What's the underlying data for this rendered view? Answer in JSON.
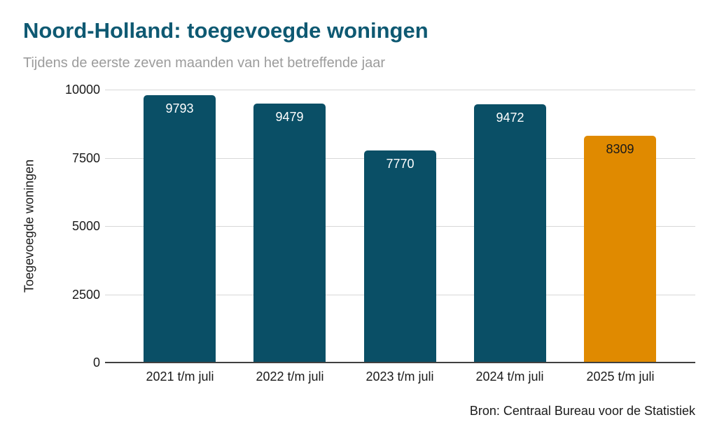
{
  "header": {
    "title": "Noord-Holland: toegevoegde woningen",
    "subtitle": "Tijdens de eerste zeven maanden van het betreffende jaar"
  },
  "footer": {
    "source": "Bron: Centraal Bureau voor de Statistiek"
  },
  "colors": {
    "title": "#0E5972",
    "subtitle": "#9C9C9C",
    "bar_default": "#0A4F66",
    "bar_highlight": "#E08A00",
    "gridline": "#D8D8D8",
    "axis_line": "#404040",
    "value_label_on_dark": "#FFFFFF",
    "value_label_on_highlight": "#1A1A1A",
    "tick_label": "#1A1A1A"
  },
  "chart_data": {
    "type": "bar",
    "title": "Noord-Holland: toegevoegde woningen",
    "subtitle": "Tijdens de eerste zeven maanden van het betreffende jaar",
    "categories": [
      "2021 t/m juli",
      "2022 t/m juli",
      "2023 t/m juli",
      "2024 t/m juli",
      "2025 t/m juli"
    ],
    "values": [
      9793,
      9479,
      7770,
      9472,
      8309
    ],
    "bar_colors": [
      "#0A4F66",
      "#0A4F66",
      "#0A4F66",
      "#0A4F66",
      "#E08A00"
    ],
    "value_label_colors": [
      "#FFFFFF",
      "#FFFFFF",
      "#FFFFFF",
      "#FFFFFF",
      "#1A1A1A"
    ],
    "value_labels": [
      "9793",
      "9479",
      "7770",
      "9472",
      "8309"
    ],
    "xlabel": "",
    "ylabel": "Toegevoegde woningen",
    "ylim": [
      0,
      10000
    ],
    "yticks": [
      0,
      2500,
      5000,
      7500,
      10000
    ],
    "ytick_labels": [
      "0",
      "2500",
      "5000",
      "7500",
      "10000"
    ],
    "grid": true,
    "legend": "none",
    "source": "Bron: Centraal Bureau voor de Statistiek"
  }
}
